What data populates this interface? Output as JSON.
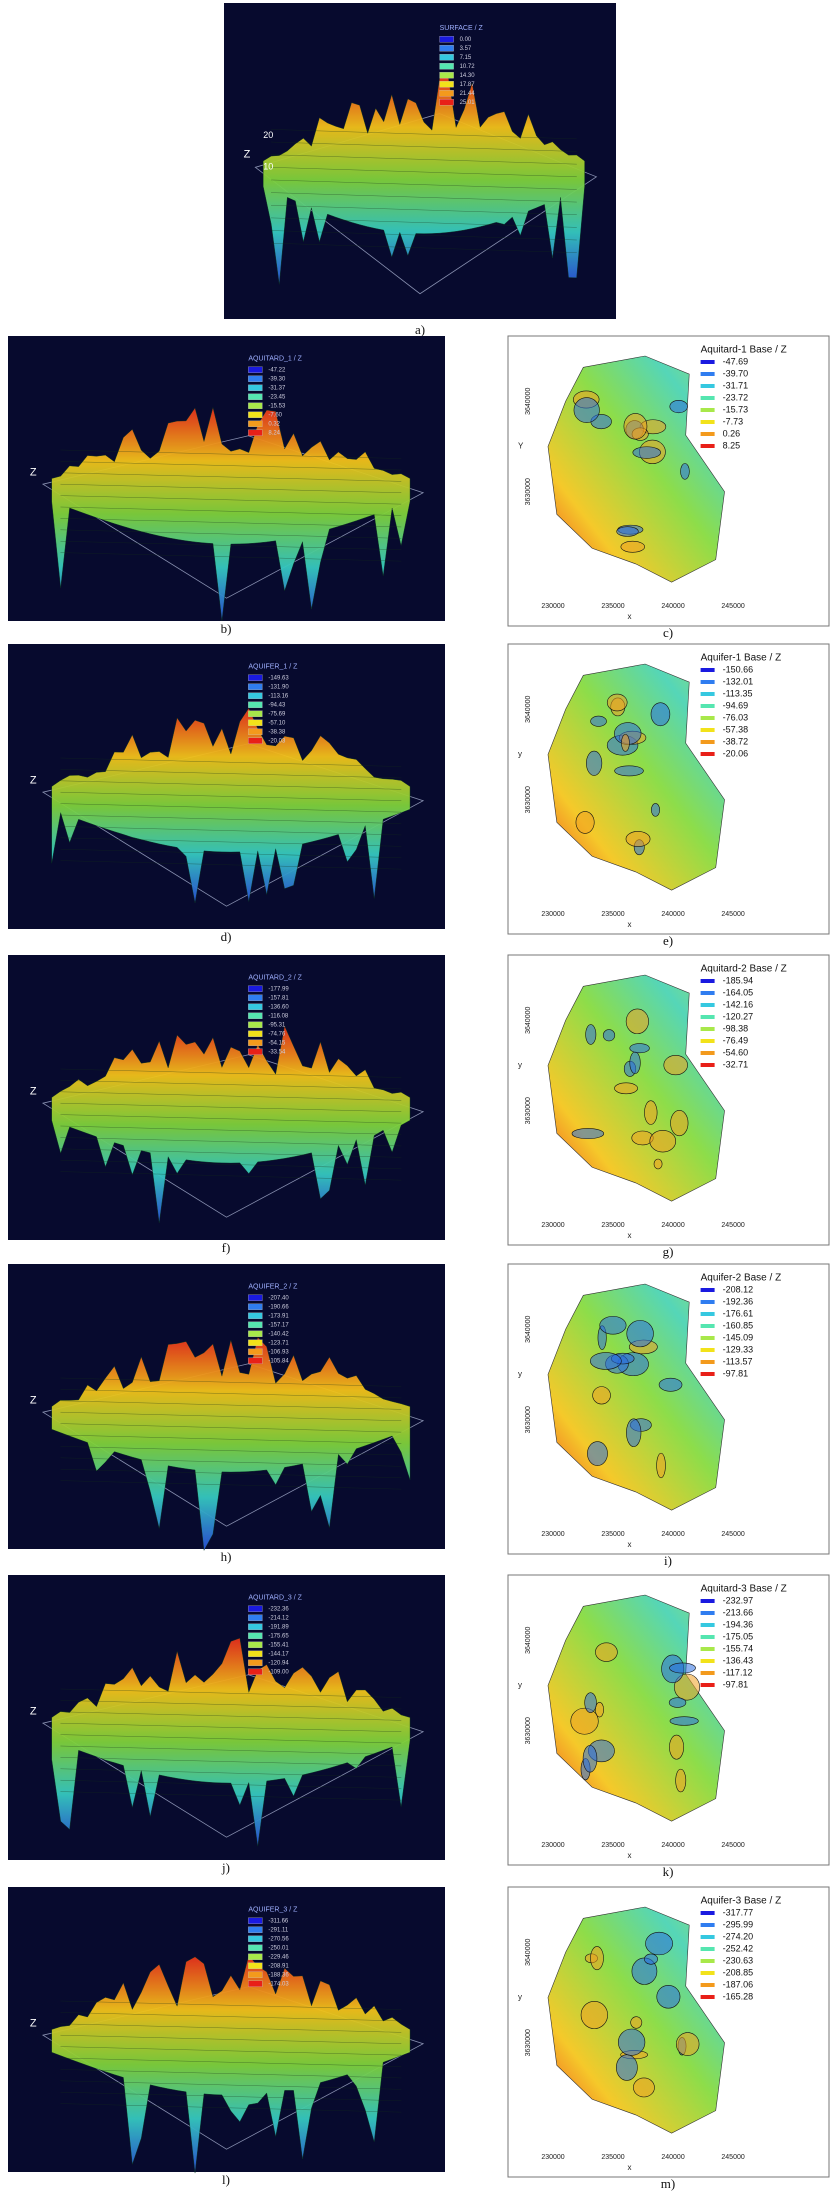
{
  "surface": {
    "label": "a)",
    "legend_title": "SURFACE / Z",
    "legend_values": [
      "0.00",
      "3.57",
      "7.15",
      "10.72",
      "14.30",
      "17.87",
      "21.44",
      "25.01"
    ],
    "z_label": "Z",
    "z_ticks": [
      "20",
      "10"
    ]
  },
  "rows": [
    {
      "left": {
        "label": "b)",
        "legend_title": "AQUITARD_1 / Z",
        "legend_values": [
          "-47.22",
          "-39.30",
          "-31.37",
          "-23.45",
          "-15.53",
          "-7.60",
          "0.32",
          "8.24"
        ],
        "z_label": "Z"
      },
      "right": {
        "label": "c)",
        "legend_title": "Aquitard-1 Base / Z",
        "legend_values": [
          "-47.69",
          "-39.70",
          "-31.71",
          "-23.72",
          "-15.73",
          "-7.73",
          "0.26",
          "8.25"
        ],
        "x_label": "x",
        "y_label": "Y"
      }
    },
    {
      "left": {
        "label": "d)",
        "legend_title": "AQUIFER_1 / Z",
        "legend_values": [
          "-149.63",
          "-131.90",
          "-113.16",
          "-94.43",
          "-75.69",
          "-57.10",
          "-38.38",
          "-20.03"
        ],
        "z_label": "Z"
      },
      "right": {
        "label": "e)",
        "legend_title": "Aquifer-1 Base / Z",
        "legend_values": [
          "-150.66",
          "-132.01",
          "-113.35",
          "-94.69",
          "-76.03",
          "-57.38",
          "-38.72",
          "-20.06"
        ],
        "x_label": "x",
        "y_label": "y"
      }
    },
    {
      "left": {
        "label": "f)",
        "legend_title": "AQUITARD_2 / Z",
        "legend_values": [
          "-177.99",
          "-157.81",
          "-136.60",
          "-116.08",
          "-95.31",
          "-74.76",
          "-54.15",
          "-33.54"
        ],
        "z_label": "Z"
      },
      "right": {
        "label": "g)",
        "legend_title": "Aquitard-2 Base / Z",
        "legend_values": [
          "-185.94",
          "-164.05",
          "-142.16",
          "-120.27",
          "-98.38",
          "-76.49",
          "-54.60",
          "-32.71"
        ],
        "x_label": "x",
        "y_label": "y"
      }
    },
    {
      "left": {
        "label": "h)",
        "legend_title": "AQUIFER_2 / Z",
        "legend_values": [
          "-207.40",
          "-190.66",
          "-173.91",
          "-157.17",
          "-140.42",
          "-123.71",
          "-106.93",
          "-105.84"
        ],
        "z_label": "Z"
      },
      "right": {
        "label": "i)",
        "legend_title": "Aquifer-2 Base / Z",
        "legend_values": [
          "-208.12",
          "-192.36",
          "-176.61",
          "-160.85",
          "-145.09",
          "-129.33",
          "-113.57",
          "-97.81"
        ],
        "x_label": "x",
        "y_label": "y"
      }
    },
    {
      "left": {
        "label": "j)",
        "legend_title": "AQUITARD_3 / Z",
        "legend_values": [
          "-232.36",
          "-214.12",
          "-191.89",
          "-175.65",
          "-155.41",
          "-144.17",
          "-120.94",
          "-109.00"
        ],
        "z_label": "Z"
      },
      "right": {
        "label": "k)",
        "legend_title": "Aquitard-3 Base / Z",
        "legend_values": [
          "-232.97",
          "-213.66",
          "-194.36",
          "-175.05",
          "-155.74",
          "-136.43",
          "-117.12",
          "-97.81"
        ],
        "x_label": "x",
        "y_label": "y"
      }
    },
    {
      "left": {
        "label": "l)",
        "legend_title": "AQUIFER_3 / Z",
        "legend_values": [
          "-311.66",
          "-291.11",
          "-270.56",
          "-250.01",
          "-229.46",
          "-208.91",
          "-188.36",
          "-174.03"
        ],
        "z_label": "Z"
      },
      "right": {
        "label": "m)",
        "legend_title": "Aquifer-3 Base / Z",
        "legend_values": [
          "-317.77",
          "-295.99",
          "-274.20",
          "-252.42",
          "-230.63",
          "-208.85",
          "-187.06",
          "-165.28"
        ],
        "x_label": "x",
        "y_label": "y"
      }
    }
  ],
  "map_x_ticks": [
    "230000",
    "235000",
    "240000",
    "245000"
  ],
  "map_y_ticks": [
    "3640000",
    "3630000"
  ]
}
